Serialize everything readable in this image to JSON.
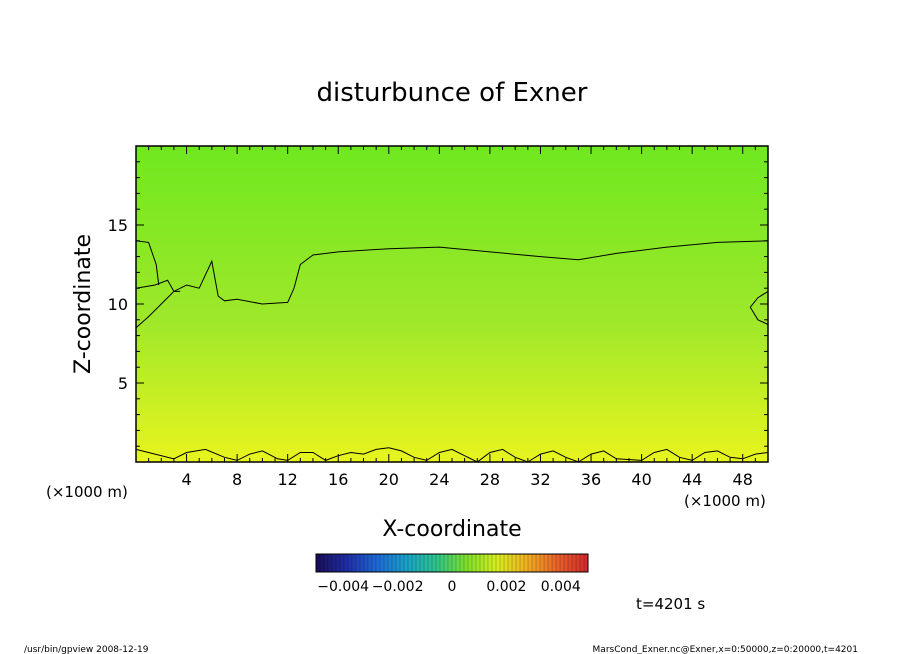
{
  "chart_data": {
    "type": "heatmap",
    "title": "disturbunce of Exner",
    "xlabel": "X-coordinate",
    "ylabel": "Z-coordinate",
    "x_unit_left": "(×1000 m)",
    "x_unit_right": "(×1000 m)",
    "xlim": [
      0,
      50
    ],
    "ylim": [
      0,
      20
    ],
    "x_ticks": [
      4,
      8,
      12,
      16,
      20,
      24,
      28,
      32,
      36,
      40,
      44,
      48
    ],
    "y_ticks": [
      5,
      10,
      15
    ],
    "colorbar": {
      "range": [
        -0.005,
        0.005
      ],
      "ticks": [
        {
          "value": -0.004,
          "label": "−0.004"
        },
        {
          "value": -0.002,
          "label": "−0.002"
        },
        {
          "value": 0,
          "label": "0"
        },
        {
          "value": 0.002,
          "label": "0.002"
        },
        {
          "value": 0.004,
          "label": "0.004"
        }
      ],
      "colors": [
        "#1a0f5c",
        "#1f2fa8",
        "#1e6ad6",
        "#19a3c7",
        "#2ec48a",
        "#7fe02a",
        "#d6ee20",
        "#f0b020",
        "#e8642a",
        "#d42a2a"
      ]
    },
    "field_colors": {
      "top": "#6fe81f",
      "middle": "#9ee82a",
      "bottom": "#e8f41e"
    },
    "contours": [
      {
        "level": "upper",
        "points": [
          [
            0,
            11.0
          ],
          [
            1.5,
            11.2
          ],
          [
            2.5,
            11.5
          ],
          [
            3,
            10.8
          ],
          [
            4,
            11.2
          ],
          [
            5,
            11.0
          ],
          [
            6,
            12.7
          ],
          [
            6.5,
            10.5
          ],
          [
            7,
            10.2
          ],
          [
            8,
            10.3
          ],
          [
            10,
            10.0
          ],
          [
            12,
            10.1
          ],
          [
            12.5,
            11.0
          ],
          [
            13,
            12.5
          ],
          [
            14,
            13.1
          ],
          [
            16,
            13.3
          ],
          [
            20,
            13.5
          ],
          [
            24,
            13.6
          ],
          [
            28,
            13.3
          ],
          [
            32,
            13.0
          ],
          [
            35,
            12.8
          ],
          [
            38,
            13.2
          ],
          [
            42,
            13.6
          ],
          [
            46,
            13.9
          ],
          [
            50,
            14.0
          ]
        ]
      },
      {
        "level": "upper-left",
        "points": [
          [
            0,
            14.0
          ],
          [
            1,
            13.9
          ],
          [
            1.6,
            12.5
          ],
          [
            1.8,
            11.2
          ]
        ]
      },
      {
        "level": "lower-left",
        "points": [
          [
            0,
            8.5
          ],
          [
            1,
            9.2
          ],
          [
            2,
            10.0
          ],
          [
            3,
            10.8
          ],
          [
            3.5,
            10.8
          ]
        ]
      },
      {
        "level": "right-edge",
        "points": [
          [
            50,
            10.8
          ],
          [
            49.2,
            10.4
          ],
          [
            48.6,
            9.8
          ],
          [
            49.2,
            9.0
          ],
          [
            50,
            8.7
          ]
        ]
      },
      {
        "level": "bottom",
        "points": [
          [
            0,
            0.8
          ],
          [
            1.5,
            0.5
          ],
          [
            3,
            0.2
          ],
          [
            4,
            0.6
          ],
          [
            5.5,
            0.8
          ],
          [
            7,
            0.3
          ],
          [
            8,
            0.1
          ],
          [
            9,
            0.5
          ],
          [
            10,
            0.7
          ],
          [
            11.2,
            0.2
          ],
          [
            12,
            0.1
          ],
          [
            13,
            0.6
          ],
          [
            14,
            0.6
          ],
          [
            15,
            0.1
          ],
          [
            16,
            0.4
          ],
          [
            17,
            0.6
          ],
          [
            18,
            0.5
          ],
          [
            19,
            0.8
          ],
          [
            20,
            0.9
          ],
          [
            21,
            0.7
          ],
          [
            22,
            0.3
          ],
          [
            23,
            0.1
          ],
          [
            24,
            0.6
          ],
          [
            25,
            0.8
          ],
          [
            26,
            0.4
          ],
          [
            27,
            0.0
          ],
          [
            28,
            0.6
          ],
          [
            29,
            0.8
          ],
          [
            30,
            0.3
          ],
          [
            31,
            0.0
          ],
          [
            32,
            0.5
          ],
          [
            33,
            0.7
          ],
          [
            34,
            0.3
          ],
          [
            35,
            0.0
          ],
          [
            36,
            0.5
          ],
          [
            37,
            0.7
          ],
          [
            38,
            0.2
          ],
          [
            40,
            0.1
          ],
          [
            41,
            0.6
          ],
          [
            42,
            0.8
          ],
          [
            43,
            0.3
          ],
          [
            44,
            0.1
          ],
          [
            45,
            0.6
          ],
          [
            46,
            0.7
          ],
          [
            47,
            0.3
          ],
          [
            48,
            0.2
          ],
          [
            49,
            0.5
          ],
          [
            50,
            0.6
          ]
        ]
      }
    ]
  },
  "time_label": "t=4201 s",
  "footer": {
    "left": "/usr/bin/gpview   2008-12-19",
    "right": "MarsCond_Exner.nc@Exner,x=0:50000,z=0:20000,t=4201"
  }
}
